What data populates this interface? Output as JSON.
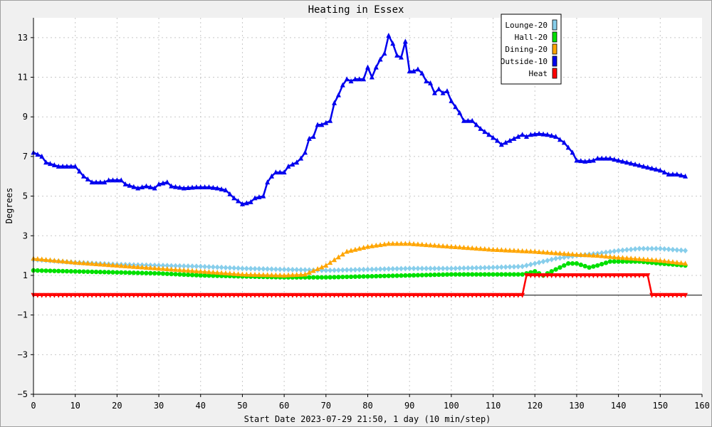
{
  "chart_data": {
    "type": "line",
    "title": "Heating in Essex",
    "xlabel": "Start Date 2023-07-29 21:50, 1 day (10 min/step)",
    "ylabel": "Degrees",
    "xlim": [
      0,
      160
    ],
    "ylim": [
      -5,
      14
    ],
    "x_ticks": [
      0,
      10,
      20,
      30,
      40,
      50,
      60,
      70,
      80,
      90,
      100,
      110,
      120,
      130,
      140,
      150,
      160
    ],
    "y_ticks": [
      -5,
      -3,
      -1,
      1,
      3,
      5,
      7,
      9,
      11,
      13
    ],
    "grid": true,
    "zero_line": true,
    "legend_position": "top-right",
    "series": [
      {
        "name": "Lounge-20",
        "color": "#87ceeb",
        "marker": "diamond",
        "points": [
          [
            0,
            1.8
          ],
          [
            10,
            1.65
          ],
          [
            20,
            1.55
          ],
          [
            30,
            1.5
          ],
          [
            40,
            1.45
          ],
          [
            50,
            1.35
          ],
          [
            60,
            1.3
          ],
          [
            70,
            1.25
          ],
          [
            80,
            1.3
          ],
          [
            90,
            1.35
          ],
          [
            100,
            1.35
          ],
          [
            110,
            1.4
          ],
          [
            117,
            1.45
          ],
          [
            120,
            1.6
          ],
          [
            125,
            1.85
          ],
          [
            130,
            2.0
          ],
          [
            135,
            2.1
          ],
          [
            140,
            2.25
          ],
          [
            145,
            2.35
          ],
          [
            150,
            2.35
          ],
          [
            156,
            2.25
          ]
        ]
      },
      {
        "name": "Hall-20",
        "color": "#00e000",
        "marker": "circle",
        "points": [
          [
            0,
            1.25
          ],
          [
            10,
            1.2
          ],
          [
            20,
            1.15
          ],
          [
            30,
            1.1
          ],
          [
            40,
            1.0
          ],
          [
            50,
            0.95
          ],
          [
            60,
            0.9
          ],
          [
            70,
            0.9
          ],
          [
            80,
            0.95
          ],
          [
            90,
            1.0
          ],
          [
            100,
            1.05
          ],
          [
            110,
            1.05
          ],
          [
            117,
            1.05
          ],
          [
            120,
            1.2
          ],
          [
            122,
            1.0
          ],
          [
            125,
            1.3
          ],
          [
            128,
            1.6
          ],
          [
            130,
            1.6
          ],
          [
            133,
            1.4
          ],
          [
            135,
            1.5
          ],
          [
            138,
            1.7
          ],
          [
            145,
            1.7
          ],
          [
            150,
            1.6
          ],
          [
            156,
            1.5
          ]
        ]
      },
      {
        "name": "Dining-20",
        "color": "#ffa500",
        "marker": "triangle-up",
        "points": [
          [
            0,
            1.85
          ],
          [
            10,
            1.65
          ],
          [
            20,
            1.5
          ],
          [
            30,
            1.35
          ],
          [
            40,
            1.2
          ],
          [
            50,
            1.05
          ],
          [
            60,
            1.0
          ],
          [
            65,
            1.05
          ],
          [
            70,
            1.5
          ],
          [
            75,
            2.2
          ],
          [
            80,
            2.45
          ],
          [
            85,
            2.6
          ],
          [
            90,
            2.6
          ],
          [
            100,
            2.45
          ],
          [
            110,
            2.3
          ],
          [
            120,
            2.2
          ],
          [
            130,
            2.05
          ],
          [
            135,
            2.0
          ],
          [
            140,
            1.9
          ],
          [
            150,
            1.75
          ],
          [
            156,
            1.6
          ]
        ]
      },
      {
        "name": "Outside-10",
        "color": "#0000ee",
        "marker": "triangle-up",
        "points": [
          [
            0,
            7.2
          ],
          [
            2,
            7.0
          ],
          [
            3,
            6.7
          ],
          [
            6,
            6.5
          ],
          [
            10,
            6.5
          ],
          [
            12,
            6.0
          ],
          [
            14,
            5.7
          ],
          [
            17,
            5.7
          ],
          [
            18,
            5.8
          ],
          [
            21,
            5.8
          ],
          [
            22,
            5.6
          ],
          [
            25,
            5.4
          ],
          [
            27,
            5.5
          ],
          [
            29,
            5.4
          ],
          [
            30,
            5.6
          ],
          [
            32,
            5.7
          ],
          [
            33,
            5.5
          ],
          [
            36,
            5.4
          ],
          [
            39,
            5.45
          ],
          [
            42,
            5.45
          ],
          [
            44,
            5.4
          ],
          [
            46,
            5.3
          ],
          [
            48,
            4.9
          ],
          [
            50,
            4.6
          ],
          [
            52,
            4.7
          ],
          [
            53,
            4.9
          ],
          [
            55,
            5.0
          ],
          [
            56,
            5.7
          ],
          [
            57,
            6.0
          ],
          [
            58,
            6.2
          ],
          [
            60,
            6.2
          ],
          [
            61,
            6.5
          ],
          [
            63,
            6.7
          ],
          [
            64,
            6.9
          ],
          [
            65,
            7.2
          ],
          [
            66,
            7.9
          ],
          [
            67,
            8.0
          ],
          [
            68,
            8.6
          ],
          [
            69,
            8.6
          ],
          [
            71,
            8.8
          ],
          [
            72,
            9.7
          ],
          [
            73,
            10.1
          ],
          [
            74,
            10.6
          ],
          [
            75,
            10.9
          ],
          [
            76,
            10.8
          ],
          [
            77,
            10.9
          ],
          [
            79,
            10.9
          ],
          [
            80,
            11.5
          ],
          [
            81,
            11.0
          ],
          [
            82,
            11.5
          ],
          [
            83,
            11.9
          ],
          [
            84,
            12.2
          ],
          [
            85,
            13.1
          ],
          [
            86,
            12.7
          ],
          [
            87,
            12.1
          ],
          [
            88,
            12.0
          ],
          [
            89,
            12.8
          ],
          [
            90,
            11.3
          ],
          [
            91,
            11.3
          ],
          [
            92,
            11.4
          ],
          [
            93,
            11.2
          ],
          [
            94,
            10.8
          ],
          [
            95,
            10.7
          ],
          [
            96,
            10.2
          ],
          [
            97,
            10.4
          ],
          [
            98,
            10.2
          ],
          [
            99,
            10.3
          ],
          [
            100,
            9.8
          ],
          [
            102,
            9.2
          ],
          [
            103,
            8.8
          ],
          [
            105,
            8.8
          ],
          [
            106,
            8.6
          ],
          [
            107,
            8.4
          ],
          [
            109,
            8.1
          ],
          [
            111,
            7.8
          ],
          [
            112,
            7.6
          ],
          [
            114,
            7.8
          ],
          [
            116,
            8.0
          ],
          [
            117,
            8.1
          ],
          [
            118,
            8.0
          ],
          [
            119,
            8.1
          ],
          [
            121,
            8.15
          ],
          [
            123,
            8.1
          ],
          [
            125,
            8.0
          ],
          [
            127,
            7.7
          ],
          [
            129,
            7.2
          ],
          [
            130,
            6.8
          ],
          [
            132,
            6.75
          ],
          [
            134,
            6.8
          ],
          [
            135,
            6.9
          ],
          [
            138,
            6.9
          ],
          [
            140,
            6.8
          ],
          [
            142,
            6.7
          ],
          [
            146,
            6.5
          ],
          [
            148,
            6.4
          ],
          [
            150,
            6.3
          ],
          [
            152,
            6.1
          ],
          [
            154,
            6.1
          ],
          [
            156,
            6.0
          ]
        ]
      },
      {
        "name": "Heat",
        "color": "#ff0000",
        "marker": "triangle-down",
        "points": [
          [
            0,
            0
          ],
          [
            117,
            0
          ],
          [
            118,
            1
          ],
          [
            147,
            1
          ],
          [
            148,
            0
          ],
          [
            156,
            0
          ]
        ]
      }
    ]
  }
}
